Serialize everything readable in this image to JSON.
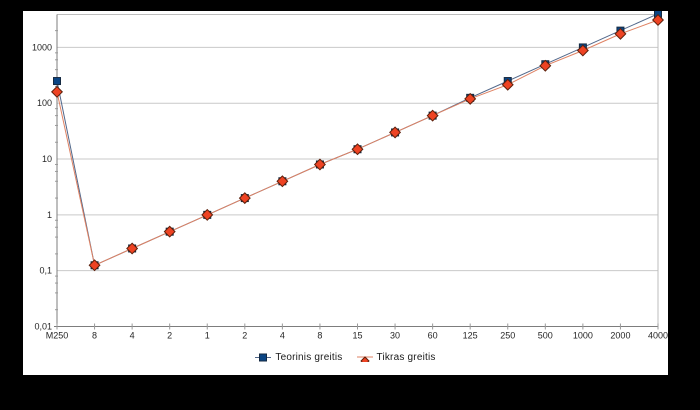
{
  "chart_data": {
    "type": "line",
    "title": "",
    "categories": [
      "M250",
      "8",
      "4",
      "2",
      "1",
      "2",
      "4",
      "8",
      "15",
      "30",
      "60",
      "125",
      "250",
      "500",
      "1000",
      "2000",
      "4000"
    ],
    "series": [
      {
        "name": "Teorinis greitis",
        "marker": "square",
        "marker_fill": "#0a4584",
        "marker_border": "#152a42",
        "line_color": "#51678a",
        "values": [
          250,
          0.125,
          0.25,
          0.5,
          1,
          2,
          4,
          8,
          15,
          30,
          60,
          125,
          250,
          500,
          1000,
          2000,
          4000
        ]
      },
      {
        "name": "Tikras greitis",
        "marker": "diamond",
        "marker_fill": "#ee4323",
        "marker_border": "#5c200c",
        "line_color": "#df8263",
        "values": [
          160,
          0.125,
          0.25,
          0.5,
          1,
          2,
          4,
          8,
          15,
          30,
          60,
          120,
          215,
          470,
          880,
          1750,
          3100
        ]
      }
    ],
    "y_axis": {
      "scale": "log",
      "min": 0.01,
      "top_value": 3900,
      "decade_labels": [
        "1000",
        "100",
        "10",
        "1",
        "0,1",
        "0,01"
      ],
      "decade_exponents": [
        3,
        2,
        1,
        0,
        -1,
        -2
      ],
      "decimal_separator": ","
    },
    "x_axis": {
      "tick_marks": "per-category"
    },
    "grid": "horizontal-decades",
    "legend_position": "bottom",
    "colors": {
      "background": "#000000",
      "chart_background": "#ffffff",
      "gridline": "#c9c9c9",
      "plot_border": "#bdbdbd",
      "axis_line": "#7d7d7d",
      "tick": "#9a9a9a",
      "label": "#262626"
    }
  }
}
